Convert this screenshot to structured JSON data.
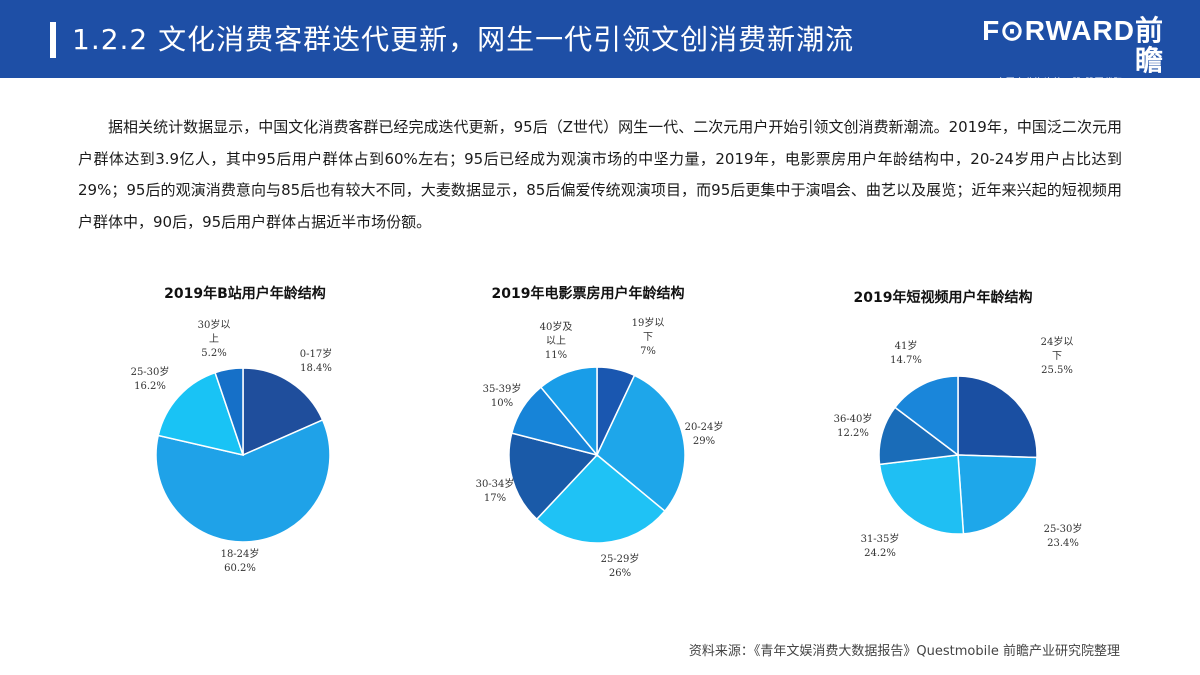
{
  "header": {
    "title": "1.2.2 文化消费客群迭代更新，网生一代引领文创消费新潮流",
    "logo_brand": "F⊙RWARD前瞻",
    "logo_sub": "中国产业咨询第一股  股票代码:839599"
  },
  "intro": "据相关统计数据显示，中国文化消费客群已经完成迭代更新，95后（Z世代）网生一代、二次元用户开始引领文创消费新潮流。2019年，中国泛二次元用户群体达到3.9亿人，其中95后用户群体占到60%左右；95后已经成为观演市场的中坚力量，2019年，电影票房用户年龄结构中，20-24岁用户占比达到29%；95后的观演消费意向与85后也有较大不同，大麦数据显示，85后偏爱传统观演项目，而95后更集中于演唱会、曲艺以及展览；近年来兴起的短视频用户群体中，90后，95后用户群体占据近半市场份额。",
  "source": "资料来源：《青年文娱消费大数据报告》Questmobile 前瞻产业研究院整理",
  "colors": {
    "header": "#1e4fa6"
  },
  "chart_data": [
    {
      "type": "pie",
      "title": "2019年B站用户年龄结构",
      "slices": [
        {
          "lines": [
            "0-17岁",
            "18.4%"
          ],
          "value": 18.4,
          "color": "#1f4e9c"
        },
        {
          "lines": [
            "18-24岁",
            "60.2%"
          ],
          "value": 60.2,
          "color": "#1fa2e8"
        },
        {
          "lines": [
            "25-30岁",
            "16.2%"
          ],
          "value": 16.2,
          "color": "#19c3f5"
        },
        {
          "lines": [
            "30岁以",
            "上",
            "5.2%"
          ],
          "value": 5.2,
          "color": "#1670c8"
        }
      ]
    },
    {
      "type": "pie",
      "title": "2019年电影票房用户年龄结构",
      "slices": [
        {
          "lines": [
            "19岁以",
            "下",
            "7%"
          ],
          "value": 7,
          "color": "#1a57b0"
        },
        {
          "lines": [
            "20-24岁",
            "29%"
          ],
          "value": 29,
          "color": "#1ea6ea"
        },
        {
          "lines": [
            "25-29岁",
            "26%"
          ],
          "value": 26,
          "color": "#1fc2f5"
        },
        {
          "lines": [
            "30-34岁",
            "17%"
          ],
          "value": 17,
          "color": "#1a5aa8"
        },
        {
          "lines": [
            "35-39岁",
            "10%"
          ],
          "value": 10,
          "color": "#1784d8"
        },
        {
          "lines": [
            "40岁及",
            "以上",
            "11%"
          ],
          "value": 11,
          "color": "#199de8"
        }
      ]
    },
    {
      "type": "pie",
      "title": "2019年短视频用户年龄结构",
      "slices": [
        {
          "lines": [
            "24岁以",
            "下",
            "25.5%"
          ],
          "value": 25.5,
          "color": "#1a4fa2"
        },
        {
          "lines": [
            "25-30岁",
            "23.4%"
          ],
          "value": 23.4,
          "color": "#1ea7ea"
        },
        {
          "lines": [
            "31-35岁",
            "24.2%"
          ],
          "value": 24.2,
          "color": "#1fbff3"
        },
        {
          "lines": [
            "36-40岁",
            "12.2%"
          ],
          "value": 12.2,
          "color": "#1a6cb8"
        },
        {
          "lines": [
            "41岁",
            "14.7%"
          ],
          "value": 14.7,
          "color": "#1a86da"
        }
      ]
    }
  ]
}
